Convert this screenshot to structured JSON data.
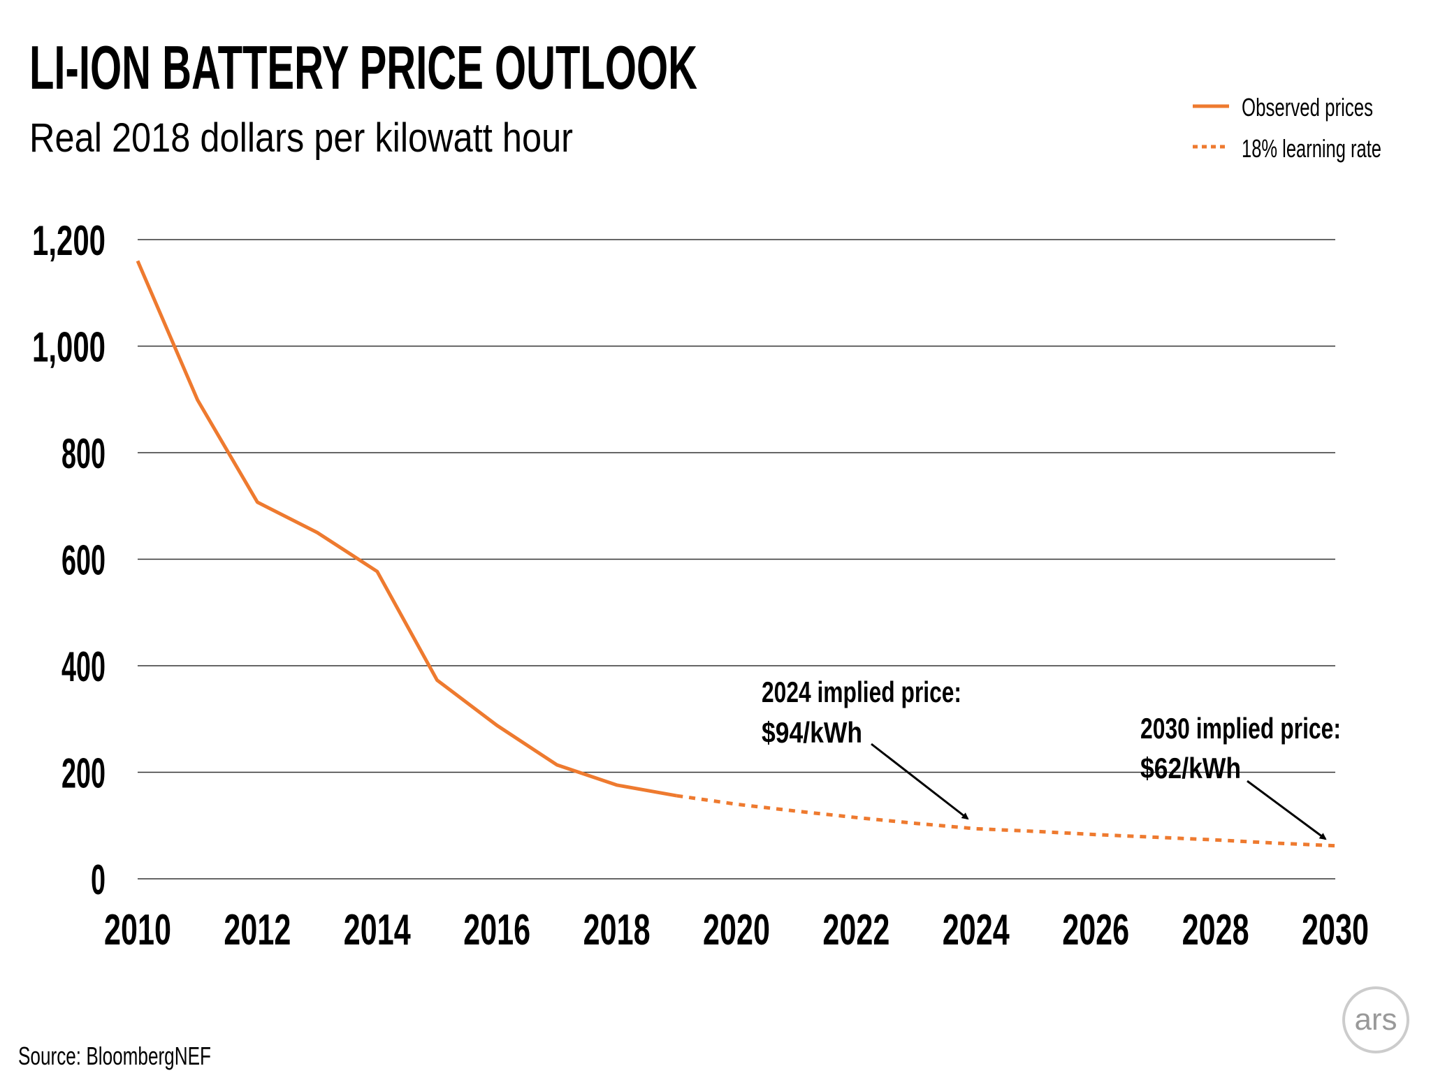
{
  "chart_data": {
    "type": "line",
    "title": "LI-ION BATTERY PRICE OUTLOOK",
    "subtitle": "Real 2018 dollars per kilowatt hour",
    "xlabel": "",
    "ylabel": "",
    "xlim": [
      2010,
      2030
    ],
    "ylim": [
      0,
      1200
    ],
    "grid": true,
    "legend_position": "top-right",
    "x_ticks": [
      "2010",
      "2012",
      "2014",
      "2016",
      "2018",
      "2020",
      "2022",
      "2024",
      "2026",
      "2028",
      "2030"
    ],
    "y_ticks": [
      "0",
      "200",
      "400",
      "600",
      "800",
      "1,000",
      "1,200"
    ],
    "y_tick_values": [
      0,
      200,
      400,
      600,
      800,
      1000,
      1200
    ],
    "series": [
      {
        "name": "Observed prices",
        "style": "solid",
        "color": "#ee7a2f",
        "x": [
          2010,
          2011,
          2012,
          2013,
          2014,
          2015,
          2016,
          2017,
          2018,
          2019
        ],
        "values": [
          1160,
          899,
          707,
          650,
          577,
          373,
          288,
          214,
          176,
          156
        ]
      },
      {
        "name": "18% learning rate",
        "style": "dotted",
        "color": "#ee7a2f",
        "x": [
          2019,
          2020,
          2021,
          2022,
          2023,
          2024,
          2025,
          2026,
          2027,
          2028,
          2029,
          2030
        ],
        "values": [
          156,
          140,
          127,
          115,
          104,
          94,
          89,
          83,
          78,
          73,
          67,
          62
        ]
      }
    ],
    "annotations": [
      {
        "line1": "2024 implied price:",
        "line2": "$94/kWh",
        "x": 2024,
        "y": 94
      },
      {
        "line1": "2030 implied price:",
        "line2": "$62/kWh",
        "x": 2030,
        "y": 62
      }
    ],
    "source": "Source:  BloombergNEF",
    "logo": "ars"
  }
}
